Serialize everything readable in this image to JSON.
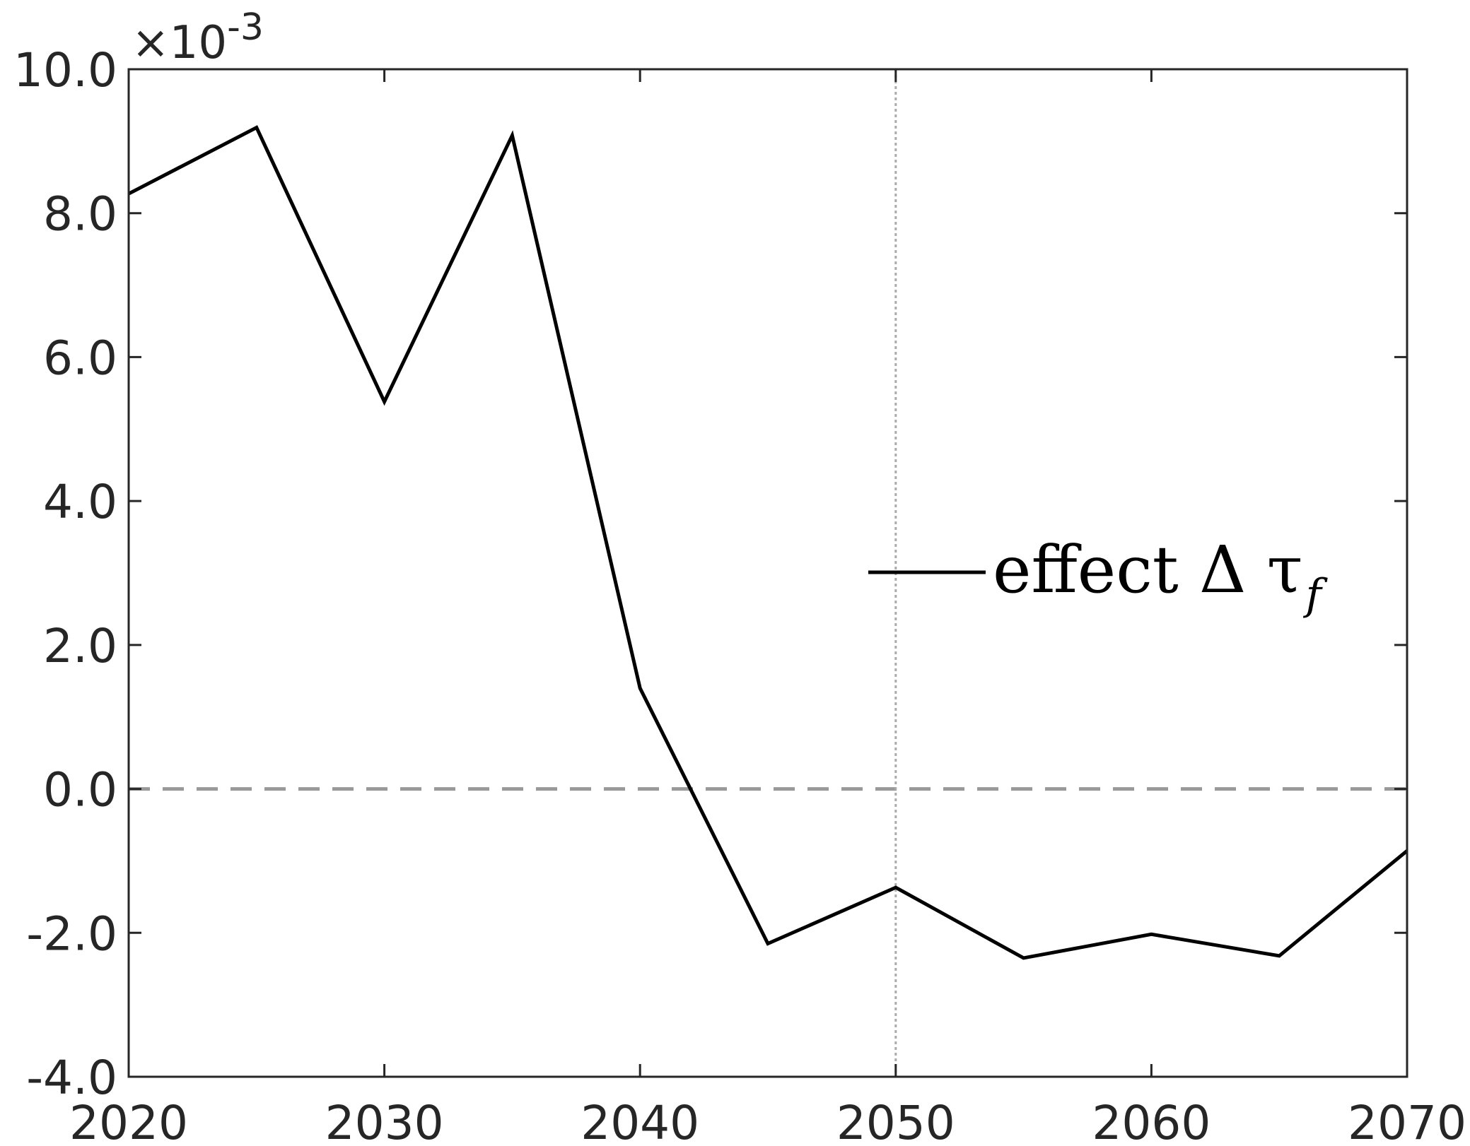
{
  "chart_data": {
    "type": "line",
    "title": "",
    "xlabel": "",
    "ylabel": "",
    "xlim": [
      2020,
      2070
    ],
    "ylim": [
      -4.0,
      10.0
    ],
    "y_exponent_label": {
      "prefix": "×10",
      "power": "-3"
    },
    "x_ticks": [
      2020,
      2030,
      2040,
      2050,
      2060,
      2070
    ],
    "x_tick_labels": [
      "2020",
      "2030",
      "2040",
      "2050",
      "2060",
      "2070"
    ],
    "y_ticks": [
      -4,
      -2,
      0,
      2,
      4,
      6,
      8,
      10
    ],
    "y_tick_labels": [
      "-4.0",
      "-2.0",
      "0.0",
      "2.0",
      "4.0",
      "6.0",
      "8.0",
      "10.0"
    ],
    "grid": false,
    "reference_lines": [
      {
        "orientation": "horizontal",
        "value": 0,
        "style": "dashed",
        "color": "#999999"
      },
      {
        "orientation": "vertical",
        "value": 2050,
        "style": "dotted",
        "color": "#aaaaaa"
      }
    ],
    "legend": {
      "position": "right-middle",
      "entries": [
        {
          "text": "effect Δ τ",
          "subscript": "f"
        }
      ]
    },
    "series": [
      {
        "color": "#000000",
        "x": [
          2020,
          2025,
          2030,
          2035,
          2040,
          2045,
          2050,
          2055,
          2060,
          2065,
          2070
        ],
        "y": [
          8.27,
          9.19,
          5.38,
          9.08,
          1.4,
          -2.15,
          -1.37,
          -2.35,
          -2.02,
          -2.32,
          -0.86
        ]
      }
    ]
  },
  "colors": {
    "axis": "#262626",
    "line": "#000000",
    "zero_line": "#999999",
    "vline": "#aaaaaa"
  }
}
